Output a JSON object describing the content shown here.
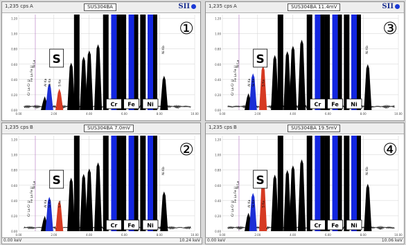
{
  "panels": [
    {
      "cps": "1,235 cps",
      "label": "A",
      "name": "SUS304BA",
      "number": "①",
      "logo": "SII"
    },
    {
      "cps": "1,235 cps",
      "label": "B",
      "name": "SUS304BA  7.0mV",
      "number": "②",
      "logo": ""
    },
    {
      "cps": "1,235 cps",
      "label": "A",
      "name": "SUS304BA  11.4mV",
      "number": "③",
      "logo": "SII"
    },
    {
      "cps": "1,235 cps",
      "label": "B",
      "name": "SUS304BA  19.5mV",
      "number": "④",
      "logo": ""
    }
  ],
  "footer": {
    "left_min": "0.00 keV",
    "left_max": "10.24 keV",
    "right_min": "0.00 keV",
    "right_max": "10.06 keV"
  },
  "colors": {
    "si_peak": "#1c2fd6",
    "s_peak": "#d63a22",
    "peaks": "#000000",
    "element_band": "#1226e0",
    "grid": "#d0d0d0"
  },
  "chart_data": {
    "type": "area",
    "x_unit": "keV",
    "xlim": [
      0,
      10
    ],
    "ylim": [
      0,
      1.25
    ],
    "x_ticks": [
      "0.00",
      "2.00",
      "4.00",
      "6.00",
      "8.00",
      "10.00"
    ],
    "y_ticks": [
      "0.00",
      "0.20",
      "0.40",
      "0.60",
      "0.80",
      "1.00",
      "1.20"
    ],
    "element_lines": [
      {
        "label": "Cr La Cr Ll",
        "x": 0.55
      },
      {
        "label": "Fe La Fe Ll",
        "x": 0.7
      },
      {
        "label": "Ni La",
        "x": 0.85
      },
      {
        "label": "Al Ka",
        "x": 1.49
      },
      {
        "label": "Si Ka",
        "x": 1.74
      },
      {
        "label": "S Ka",
        "x": 2.31
      },
      {
        "label": "Ni Kb",
        "x": 8.26
      }
    ],
    "bands": [
      {
        "label": "Cr",
        "x": 5.41
      },
      {
        "label": "Fe",
        "x": 6.4
      },
      {
        "label": "Ni",
        "x": 7.48
      }
    ],
    "highlight": "S",
    "series": [
      {
        "peaks": [
          {
            "x": 1.48,
            "y": 0.18
          },
          {
            "x": 1.74,
            "y": 0.35
          },
          {
            "x": 2.31,
            "y": 0.28
          },
          {
            "x": 2.98,
            "y": 0.62
          },
          {
            "x": 3.3,
            "y": 1.25
          },
          {
            "x": 3.69,
            "y": 0.7
          },
          {
            "x": 4.01,
            "y": 0.78
          },
          {
            "x": 4.51,
            "y": 0.86
          },
          {
            "x": 4.95,
            "y": 1.25
          },
          {
            "x": 5.41,
            "y": 1.25
          },
          {
            "x": 5.95,
            "y": 1.25
          },
          {
            "x": 6.4,
            "y": 1.25
          },
          {
            "x": 7.06,
            "y": 1.25
          },
          {
            "x": 7.48,
            "y": 1.25
          },
          {
            "x": 8.26,
            "y": 0.45
          }
        ]
      },
      {
        "peaks": [
          {
            "x": 1.48,
            "y": 0.2
          },
          {
            "x": 1.74,
            "y": 0.45
          },
          {
            "x": 2.31,
            "y": 0.4
          },
          {
            "x": 2.98,
            "y": 0.7
          },
          {
            "x": 3.3,
            "y": 1.25
          },
          {
            "x": 3.69,
            "y": 0.75
          },
          {
            "x": 4.01,
            "y": 0.82
          },
          {
            "x": 4.51,
            "y": 0.9
          },
          {
            "x": 4.95,
            "y": 1.25
          },
          {
            "x": 5.41,
            "y": 1.25
          },
          {
            "x": 5.95,
            "y": 1.25
          },
          {
            "x": 6.4,
            "y": 1.25
          },
          {
            "x": 7.06,
            "y": 1.25
          },
          {
            "x": 7.48,
            "y": 1.25
          },
          {
            "x": 8.26,
            "y": 0.52
          }
        ]
      },
      {
        "peaks": [
          {
            "x": 1.48,
            "y": 0.22
          },
          {
            "x": 1.74,
            "y": 0.48
          },
          {
            "x": 2.31,
            "y": 0.58
          },
          {
            "x": 2.98,
            "y": 0.72
          },
          {
            "x": 3.3,
            "y": 1.25
          },
          {
            "x": 3.69,
            "y": 0.77
          },
          {
            "x": 4.01,
            "y": 0.84
          },
          {
            "x": 4.51,
            "y": 0.92
          },
          {
            "x": 4.95,
            "y": 1.25
          },
          {
            "x": 5.41,
            "y": 1.25
          },
          {
            "x": 5.95,
            "y": 1.25
          },
          {
            "x": 6.4,
            "y": 1.25
          },
          {
            "x": 7.06,
            "y": 1.25
          },
          {
            "x": 7.48,
            "y": 1.25
          },
          {
            "x": 8.26,
            "y": 0.6
          }
        ]
      },
      {
        "peaks": [
          {
            "x": 1.48,
            "y": 0.24
          },
          {
            "x": 1.74,
            "y": 0.5
          },
          {
            "x": 2.31,
            "y": 0.7
          },
          {
            "x": 2.98,
            "y": 0.74
          },
          {
            "x": 3.3,
            "y": 1.25
          },
          {
            "x": 3.69,
            "y": 0.8
          },
          {
            "x": 4.01,
            "y": 0.86
          },
          {
            "x": 4.51,
            "y": 0.94
          },
          {
            "x": 4.95,
            "y": 1.25
          },
          {
            "x": 5.41,
            "y": 1.25
          },
          {
            "x": 5.95,
            "y": 1.25
          },
          {
            "x": 6.4,
            "y": 1.25
          },
          {
            "x": 7.06,
            "y": 1.25
          },
          {
            "x": 7.48,
            "y": 1.25
          },
          {
            "x": 8.26,
            "y": 0.62
          }
        ]
      }
    ]
  }
}
